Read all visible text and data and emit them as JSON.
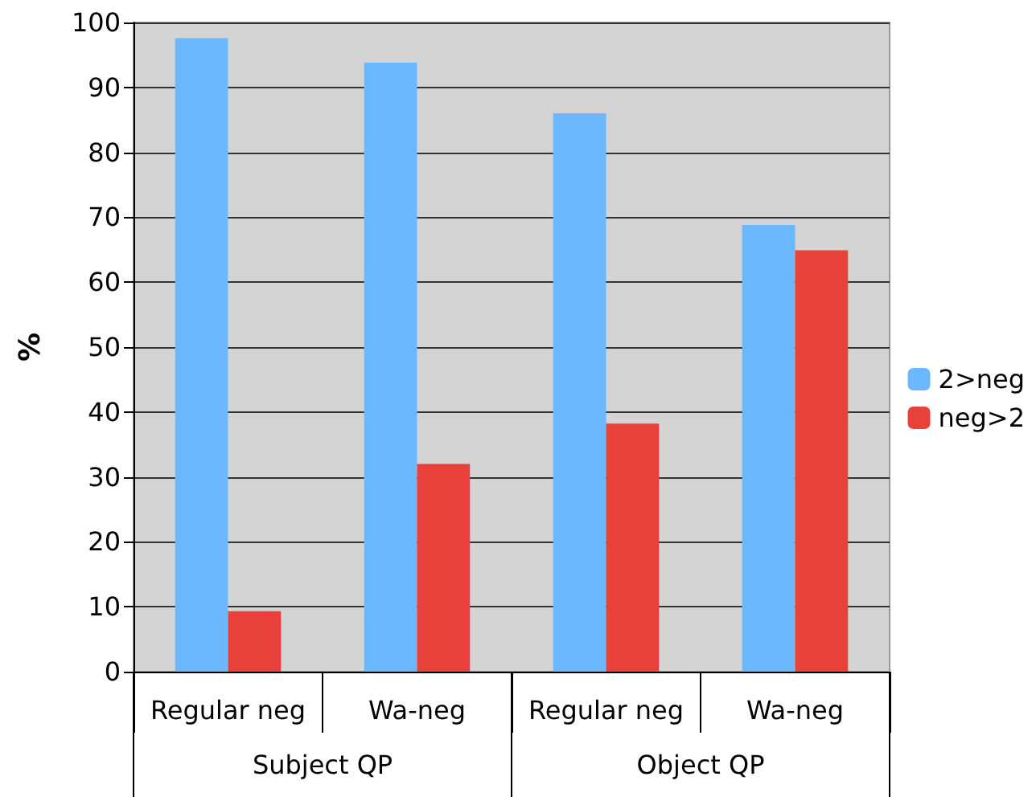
{
  "chart_data": {
    "type": "bar",
    "ylabel": "%",
    "categories": [
      "Regular neg",
      "Wa-neg",
      "Regular neg",
      "Wa-neg"
    ],
    "series": [
      {
        "name": "2>neg",
        "color": "#6bb8ff",
        "values": [
          97.6,
          93.8,
          86.0,
          68.8
        ]
      },
      {
        "name": "neg>2",
        "color": "#e8413b",
        "values": [
          9.3,
          32.0,
          38.2,
          64.9
        ]
      }
    ],
    "annotations": [
      "Subject QP",
      "Object QP"
    ],
    "ylim": [
      0,
      100
    ],
    "yticks": [
      0,
      10,
      20,
      30,
      40,
      50,
      60,
      70,
      80,
      90,
      100
    ],
    "grid": "y",
    "legend": "right"
  }
}
